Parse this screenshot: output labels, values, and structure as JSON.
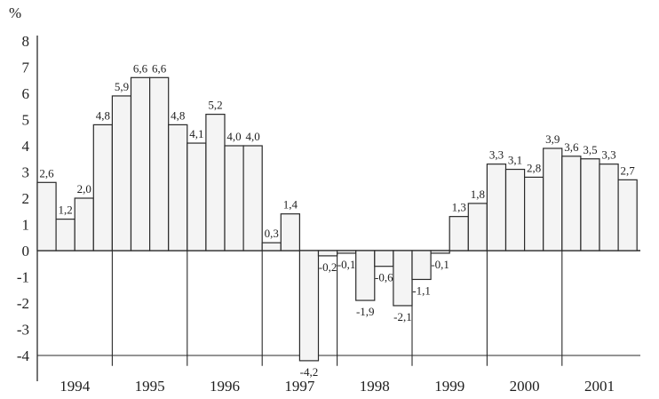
{
  "chart_data": {
    "type": "bar",
    "unit_label": "%",
    "title": "",
    "xlabel": "",
    "ylabel": "",
    "ylim": [
      -4.4,
      8.0
    ],
    "y_ticks": [
      "8",
      "7",
      "6",
      "5",
      "4",
      "3",
      "2",
      "1",
      "0",
      "-1",
      "-2",
      "-3",
      "-4"
    ],
    "y_tick_values": [
      8,
      7,
      6,
      5,
      4,
      3,
      2,
      1,
      0,
      -1,
      -2,
      -3,
      -4
    ],
    "years": [
      "1994",
      "1995",
      "1996",
      "1997",
      "1998",
      "1999",
      "2000",
      "2001"
    ],
    "quarters_per_year": 4,
    "values": [
      2.6,
      1.2,
      2.0,
      4.8,
      5.9,
      6.6,
      6.6,
      4.8,
      4.1,
      5.2,
      4.0,
      4.0,
      0.3,
      1.4,
      -4.2,
      -0.2,
      -0.1,
      -1.9,
      -0.6,
      -2.1,
      -1.1,
      -0.1,
      1.3,
      1.8,
      3.3,
      3.1,
      2.8,
      3.9,
      3.6,
      3.5,
      3.3,
      2.7
    ],
    "data_labels": [
      "2,6",
      "1,2",
      "2,0",
      "4,8",
      "5,9",
      "6,6",
      "6,6",
      "4,8",
      "4,1",
      "5,2",
      "4,0",
      "4,0",
      "0,3",
      "1,4",
      "-4,2",
      "-0,2",
      "-0,1",
      "-1,9",
      "-0,6",
      "-2,1",
      "-1,1",
      "-0,1",
      "1,3",
      "1,8",
      "3,3",
      "3,1",
      "2,8",
      "3,9",
      "3,6",
      "3,5",
      "3,3",
      "2,7"
    ],
    "bar_fill": "#f4f4f4",
    "stroke_color": "#2a2a2a",
    "grid": false,
    "legend": "none"
  }
}
